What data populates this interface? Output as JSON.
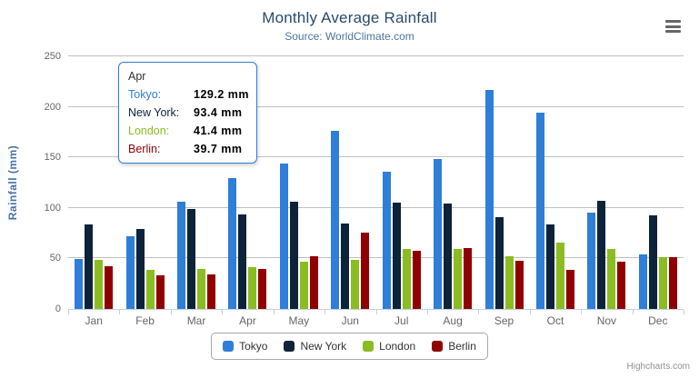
{
  "header": {
    "title": "Monthly Average Rainfall",
    "subtitle": "Source: WorldClimate.com"
  },
  "icons": {
    "context_menu": "hamburger-icon"
  },
  "chart_data": {
    "type": "bar",
    "title": "Monthly Average Rainfall",
    "subtitle": "Source: WorldClimate.com",
    "categories": [
      "Jan",
      "Feb",
      "Mar",
      "Apr",
      "May",
      "Jun",
      "Jul",
      "Aug",
      "Sep",
      "Oct",
      "Nov",
      "Dec"
    ],
    "series": [
      {
        "name": "Tokyo",
        "color": "#2f7ed8",
        "values": [
          49.9,
          71.5,
          106.4,
          129.2,
          144.0,
          176.0,
          135.6,
          148.5,
          216.4,
          194.1,
          95.6,
          54.4
        ]
      },
      {
        "name": "New York",
        "color": "#0d233a",
        "values": [
          83.6,
          78.8,
          98.5,
          93.4,
          106.0,
          84.5,
          105.0,
          104.3,
          91.2,
          83.5,
          106.6,
          92.3
        ]
      },
      {
        "name": "London",
        "color": "#8bbc21",
        "values": [
          48.9,
          38.8,
          39.3,
          41.4,
          47.0,
          48.3,
          59.0,
          59.6,
          52.4,
          65.2,
          59.3,
          51.2
        ]
      },
      {
        "name": "Berlin",
        "color": "#910000",
        "values": [
          42.4,
          33.2,
          34.5,
          39.7,
          52.6,
          75.5,
          57.4,
          60.4,
          47.6,
          39.1,
          46.8,
          51.1
        ]
      }
    ],
    "xlabel": "",
    "ylabel": "Rainfall (mm)",
    "ylim": [
      0,
      250
    ],
    "ytick_interval": 50,
    "grid": true,
    "legend_position": "bottom"
  },
  "tooltip": {
    "header": "Apr",
    "rows": [
      {
        "name": "Tokyo",
        "value": "129.2 mm"
      },
      {
        "name": "New York",
        "value": "93.4 mm"
      },
      {
        "name": "London",
        "value": "41.4 mm"
      },
      {
        "name": "Berlin",
        "value": "39.7 mm"
      }
    ]
  },
  "legend": {
    "items": [
      "Tokyo",
      "New York",
      "London",
      "Berlin"
    ]
  },
  "credits": "Highcharts.com"
}
